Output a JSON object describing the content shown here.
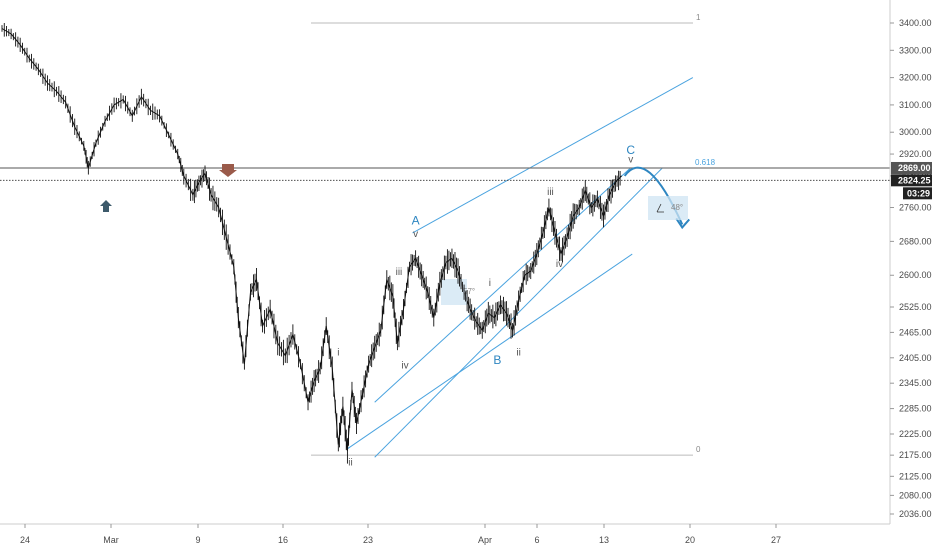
{
  "chart_data": {
    "type": "line",
    "series_kind": "candlestick price",
    "ylim": [
      2000,
      3460
    ],
    "y_ticks": [
      "3400.00",
      "3300.00",
      "3200.00",
      "3100.00",
      "3000.00",
      "2920.00",
      "2840.00",
      "2760.00",
      "2680.00",
      "2600.00",
      "2525.00",
      "2465.00",
      "2405.00",
      "2345.00",
      "2285.00",
      "2225.00",
      "2175.00",
      "2125.00",
      "2080.00",
      "2036.00"
    ],
    "x_ticks": [
      "24",
      "Mar",
      "9",
      "16",
      "23",
      "Apr",
      "6",
      "13",
      "20",
      "27"
    ],
    "price_path": [
      {
        "d": 0,
        "v": 3380
      },
      {
        "d": 0.6,
        "v": 3360
      },
      {
        "d": 1.2,
        "v": 3320
      },
      {
        "d": 1.8,
        "v": 3270
      },
      {
        "d": 2.4,
        "v": 3230
      },
      {
        "d": 3,
        "v": 3180
      },
      {
        "d": 3.6,
        "v": 3150
      },
      {
        "d": 4.2,
        "v": 3110
      },
      {
        "d": 4.8,
        "v": 3020
      },
      {
        "d": 5.4,
        "v": 2950
      },
      {
        "d": 5.7,
        "v": 2870
      },
      {
        "d": 6.2,
        "v": 2960
      },
      {
        "d": 6.8,
        "v": 3040
      },
      {
        "d": 7.4,
        "v": 3100
      },
      {
        "d": 8,
        "v": 3120
      },
      {
        "d": 8.6,
        "v": 3060
      },
      {
        "d": 9.2,
        "v": 3130
      },
      {
        "d": 9.8,
        "v": 3080
      },
      {
        "d": 10.4,
        "v": 3060
      },
      {
        "d": 11,
        "v": 2990
      },
      {
        "d": 11.6,
        "v": 2920
      },
      {
        "d": 12,
        "v": 2840
      },
      {
        "d": 12.6,
        "v": 2790
      },
      {
        "d": 13,
        "v": 2820
      },
      {
        "d": 13.4,
        "v": 2850
      },
      {
        "d": 13.8,
        "v": 2790
      },
      {
        "d": 14.3,
        "v": 2760
      },
      {
        "d": 14.8,
        "v": 2690
      },
      {
        "d": 15.3,
        "v": 2620
      },
      {
        "d": 15.6,
        "v": 2500
      },
      {
        "d": 16,
        "v": 2390
      },
      {
        "d": 16.4,
        "v": 2560
      },
      {
        "d": 16.8,
        "v": 2590
      },
      {
        "d": 17.2,
        "v": 2480
      },
      {
        "d": 17.7,
        "v": 2520
      },
      {
        "d": 18.2,
        "v": 2440
      },
      {
        "d": 18.7,
        "v": 2410
      },
      {
        "d": 19.2,
        "v": 2460
      },
      {
        "d": 19.7,
        "v": 2390
      },
      {
        "d": 20.2,
        "v": 2300
      },
      {
        "d": 20.6,
        "v": 2350
      },
      {
        "d": 21,
        "v": 2380
      },
      {
        "d": 21.4,
        "v": 2480
      },
      {
        "d": 21.8,
        "v": 2380
      },
      {
        "d": 22.2,
        "v": 2200
      },
      {
        "d": 22.5,
        "v": 2290
      },
      {
        "d": 22.8,
        "v": 2185
      },
      {
        "d": 23.1,
        "v": 2330
      },
      {
        "d": 23.4,
        "v": 2250
      },
      {
        "d": 23.8,
        "v": 2320
      },
      {
        "d": 24.2,
        "v": 2390
      },
      {
        "d": 24.6,
        "v": 2430
      },
      {
        "d": 25,
        "v": 2470
      },
      {
        "d": 25.4,
        "v": 2590
      },
      {
        "d": 25.8,
        "v": 2550
      },
      {
        "d": 26.1,
        "v": 2440
      },
      {
        "d": 26.5,
        "v": 2520
      },
      {
        "d": 26.9,
        "v": 2620
      },
      {
        "d": 27.3,
        "v": 2640
      },
      {
        "d": 27.7,
        "v": 2600
      },
      {
        "d": 28.1,
        "v": 2560
      },
      {
        "d": 28.5,
        "v": 2500
      },
      {
        "d": 28.9,
        "v": 2580
      },
      {
        "d": 29.3,
        "v": 2630
      },
      {
        "d": 29.7,
        "v": 2640
      },
      {
        "d": 30.1,
        "v": 2610
      },
      {
        "d": 30.5,
        "v": 2560
      },
      {
        "d": 30.9,
        "v": 2520
      },
      {
        "d": 31.3,
        "v": 2490
      },
      {
        "d": 31.7,
        "v": 2470
      },
      {
        "d": 32.1,
        "v": 2510
      },
      {
        "d": 32.5,
        "v": 2500
      },
      {
        "d": 32.9,
        "v": 2530
      },
      {
        "d": 33.3,
        "v": 2510
      },
      {
        "d": 33.7,
        "v": 2470
      },
      {
        "d": 34.1,
        "v": 2540
      },
      {
        "d": 34.5,
        "v": 2600
      },
      {
        "d": 34.9,
        "v": 2610
      },
      {
        "d": 35.3,
        "v": 2650
      },
      {
        "d": 35.7,
        "v": 2700
      },
      {
        "d": 36.1,
        "v": 2760
      },
      {
        "d": 36.5,
        "v": 2700
      },
      {
        "d": 36.9,
        "v": 2650
      },
      {
        "d": 37.3,
        "v": 2690
      },
      {
        "d": 37.7,
        "v": 2740
      },
      {
        "d": 38.1,
        "v": 2760
      },
      {
        "d": 38.5,
        "v": 2800
      },
      {
        "d": 38.9,
        "v": 2760
      },
      {
        "d": 39.3,
        "v": 2780
      },
      {
        "d": 39.7,
        "v": 2740
      },
      {
        "d": 40.1,
        "v": 2790
      },
      {
        "d": 40.5,
        "v": 2820
      },
      {
        "d": 40.9,
        "v": 2840
      }
    ],
    "fib_levels": [
      {
        "label": "1",
        "value": 3400
      },
      {
        "label": "0.618",
        "value": 2869
      },
      {
        "label": "0",
        "value": 2175
      }
    ],
    "horizontal_level": 2869,
    "current_price": 2824.25,
    "price_tags": [
      {
        "value": "2869.00",
        "price": 2869,
        "color": "#555555"
      },
      {
        "value": "2824.25",
        "price": 2824.25,
        "color": "#222222"
      }
    ],
    "countdown": "03:29",
    "wave_labels": [
      {
        "text": "i",
        "d": 22.2,
        "v": 2410,
        "style": "small"
      },
      {
        "text": "ii",
        "d": 23,
        "v": 2150,
        "style": "small"
      },
      {
        "text": "iii",
        "d": 26.2,
        "v": 2600,
        "style": "small"
      },
      {
        "text": "iv",
        "d": 26.6,
        "v": 2380,
        "style": "small"
      },
      {
        "text": "v",
        "d": 27.3,
        "v": 2690,
        "style": "small"
      },
      {
        "text": "A",
        "d": 27.3,
        "v": 2720,
        "style": "big"
      },
      {
        "text": "i",
        "d": 32.2,
        "v": 2575,
        "style": "small"
      },
      {
        "text": "B",
        "d": 32.7,
        "v": 2390,
        "style": "big"
      },
      {
        "text": "ii",
        "d": 34.1,
        "v": 2410,
        "style": "small"
      },
      {
        "text": "iii",
        "d": 36.2,
        "v": 2790,
        "style": "small"
      },
      {
        "text": "iv",
        "d": 36.8,
        "v": 2620,
        "style": "small"
      },
      {
        "text": "v",
        "d": 41.5,
        "v": 2890,
        "style": "small"
      },
      {
        "text": "C",
        "d": 41.5,
        "v": 2920,
        "style": "big"
      }
    ],
    "angle_labels": [
      "57°",
      "48°"
    ],
    "colors": {
      "price": "#111111",
      "channel": "#4aa3df",
      "level": "#777777",
      "fib": "#bbbbbb",
      "arrow_up": "#3d5a6b",
      "arrow_down": "#9a5a4a",
      "projection": "#2e86c1",
      "box": "#cfe4f3"
    }
  }
}
